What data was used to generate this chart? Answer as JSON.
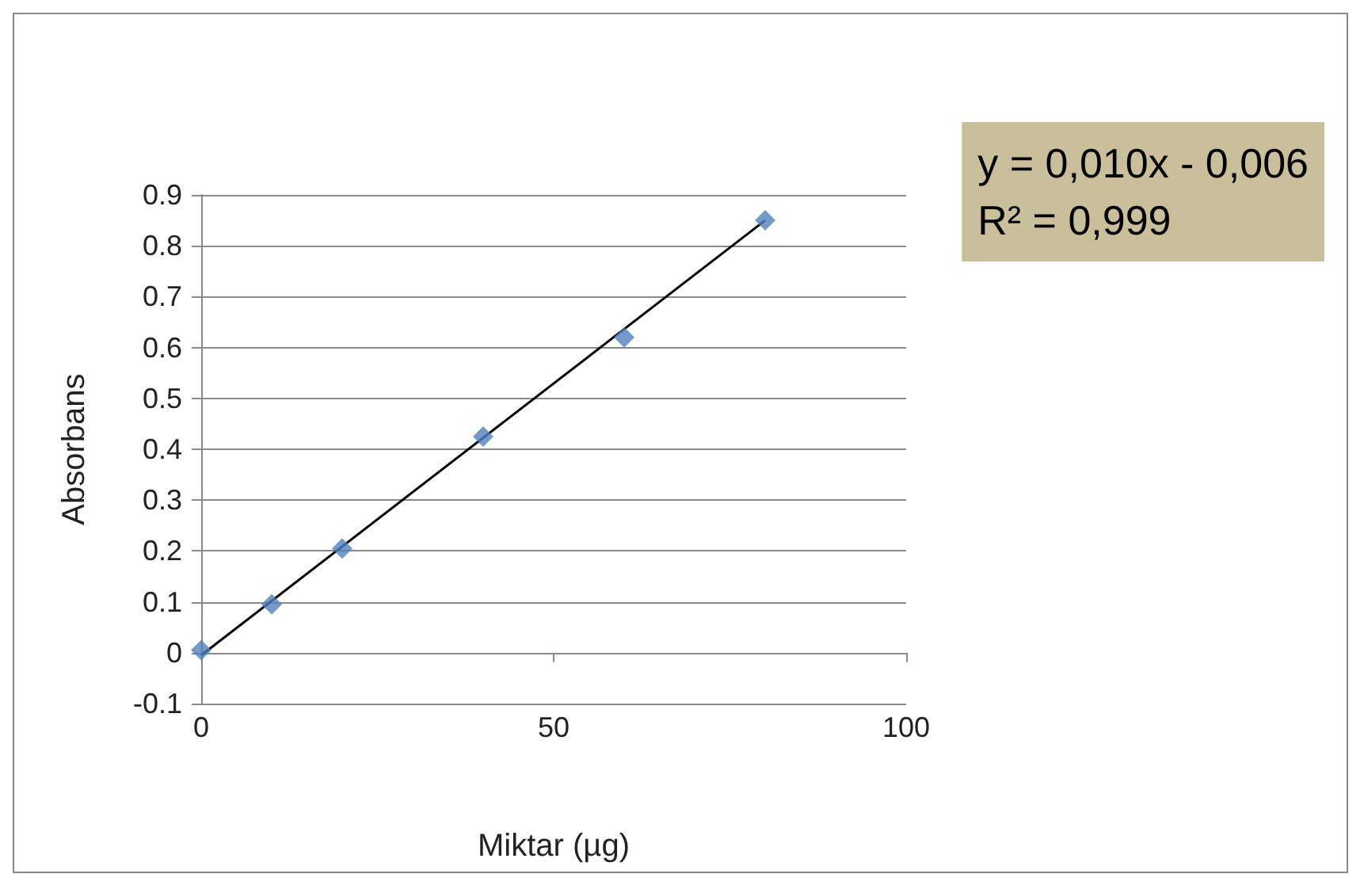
{
  "chart_data": {
    "type": "scatter",
    "xlabel": "Miktar (µg)",
    "ylabel": "Absorbans",
    "x": [
      0,
      10,
      20,
      40,
      60,
      80
    ],
    "series": [
      {
        "color": "#4f81bd",
        "marker": "diamond",
        "values": [
          0.005,
          0.095,
          0.205,
          0.425,
          0.62,
          0.85
        ]
      },
      {
        "type": "line",
        "x": [
          0,
          80
        ],
        "color": "#000000",
        "marker": "none",
        "values": [
          -0.005,
          0.85
        ]
      }
    ],
    "xlim": [
      0,
      100
    ],
    "xticks": [
      0,
      50,
      100
    ],
    "ylim": [
      -0.1,
      0.9
    ],
    "yticks": [
      -0.1,
      0,
      0.1,
      0.2,
      0.3,
      0.4,
      0.5,
      0.6,
      0.7,
      0.8,
      0.9
    ],
    "grid": "y",
    "annotations": [
      "y = 0,010x - 0,006",
      "R² = 0,999"
    ]
  }
}
